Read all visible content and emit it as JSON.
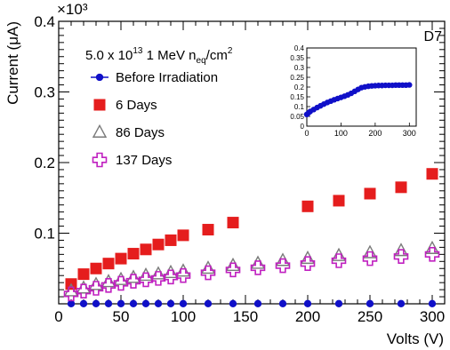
{
  "chart_data": [
    {
      "type": "scatter",
      "title": "",
      "xlabel": "Volts (V)",
      "ylabel": "Current (μA)",
      "y_multiplier_label": "×10³",
      "xlim": [
        0,
        310
      ],
      "ylim": [
        0,
        0.4
      ],
      "x_ticks": [
        "0",
        "50",
        "100",
        "150",
        "200",
        "250",
        "300"
      ],
      "y_ticks": [
        "0.1",
        "0.2",
        "0.3",
        "0.4"
      ],
      "grid": false,
      "legend_position": "top-left",
      "annotation": "D7",
      "legend_title": {
        "prefix": "5.0 x 10",
        "exp": "13",
        "mid": " 1 MeV n",
        "sub": "eq",
        "suffix": "/cm",
        "sup2": "2"
      },
      "series": [
        {
          "name": "Before Irradiation",
          "marker": "circle",
          "color": "#1010c8",
          "x": [
            10,
            20,
            30,
            40,
            50,
            60,
            70,
            80,
            90,
            100,
            120,
            140,
            160,
            180,
            200,
            225,
            250,
            275,
            300
          ],
          "y": [
            0.0002,
            0.0002,
            0.0002,
            0.0002,
            0.0002,
            0.0002,
            0.0002,
            0.0002,
            0.0002,
            0.0002,
            0.0002,
            0.0002,
            0.0002,
            0.0002,
            0.0002,
            0.0002,
            0.0002,
            0.0002,
            0.0002
          ]
        },
        {
          "name": "6 Days",
          "marker": "square",
          "color": "#e51d1d",
          "x": [
            10,
            20,
            30,
            40,
            50,
            60,
            70,
            80,
            90,
            100,
            120,
            140,
            200,
            225,
            250,
            275,
            300
          ],
          "y": [
            0.028,
            0.042,
            0.05,
            0.057,
            0.064,
            0.071,
            0.077,
            0.084,
            0.09,
            0.097,
            0.105,
            0.115,
            0.138,
            0.146,
            0.156,
            0.165,
            0.184
          ]
        },
        {
          "name": "86 Days",
          "marker": "triangle",
          "color": "#7a7a7a",
          "x": [
            10,
            20,
            30,
            40,
            50,
            60,
            70,
            80,
            90,
            100,
            120,
            140,
            160,
            180,
            200,
            225,
            250,
            275,
            300
          ],
          "y": [
            0.018,
            0.022,
            0.027,
            0.031,
            0.034,
            0.037,
            0.04,
            0.042,
            0.044,
            0.046,
            0.05,
            0.054,
            0.057,
            0.061,
            0.064,
            0.068,
            0.072,
            0.075,
            0.078
          ]
        },
        {
          "name": "137 Days",
          "marker": "cross",
          "color": "#c020c0",
          "x": [
            10,
            20,
            30,
            40,
            50,
            60,
            70,
            80,
            90,
            100,
            120,
            140,
            160,
            180,
            200,
            225,
            250,
            275,
            300
          ],
          "y": [
            0.014,
            0.018,
            0.022,
            0.026,
            0.029,
            0.032,
            0.034,
            0.036,
            0.038,
            0.04,
            0.044,
            0.048,
            0.051,
            0.054,
            0.057,
            0.061,
            0.064,
            0.067,
            0.07
          ]
        }
      ]
    },
    {
      "type": "scatter",
      "title": "",
      "xlabel": "",
      "ylabel": "",
      "xlim": [
        0,
        320
      ],
      "ylim": [
        0,
        0.4
      ],
      "x_ticks": [
        "0",
        "100",
        "200",
        "300"
      ],
      "y_ticks": [
        "0",
        "0.05",
        "0.1",
        "0.15",
        "0.2",
        "0.25",
        "0.3",
        "0.35",
        "0.4"
      ],
      "grid": false,
      "position": "top-right inset",
      "series": [
        {
          "marker": "circle",
          "color": "#1010c8",
          "x": [
            0,
            5,
            10,
            20,
            30,
            40,
            50,
            60,
            70,
            80,
            90,
            100,
            110,
            120,
            130,
            140,
            150,
            160,
            170,
            180,
            190,
            200,
            210,
            220,
            230,
            240,
            250,
            260,
            270,
            280,
            290,
            300
          ],
          "y": [
            0.06,
            0.068,
            0.075,
            0.085,
            0.095,
            0.104,
            0.113,
            0.121,
            0.128,
            0.135,
            0.141,
            0.147,
            0.153,
            0.16,
            0.168,
            0.178,
            0.188,
            0.197,
            0.201,
            0.204,
            0.206,
            0.207,
            0.208,
            0.208,
            0.209,
            0.209,
            0.209,
            0.21,
            0.21,
            0.21,
            0.21,
            0.211
          ]
        }
      ]
    }
  ]
}
